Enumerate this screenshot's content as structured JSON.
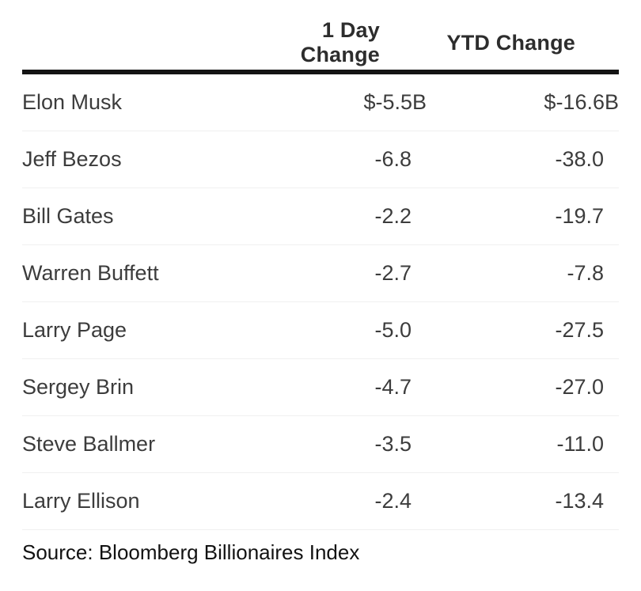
{
  "table": {
    "columns": [
      {
        "label": ""
      },
      {
        "label": "1 Day Change"
      },
      {
        "label": "YTD Change"
      }
    ],
    "rows": [
      {
        "name": "Elon Musk",
        "day": "$-5.5B",
        "ytd": "$-16.6B"
      },
      {
        "name": "Jeff Bezos",
        "day": "-6.8",
        "ytd": "-38.0"
      },
      {
        "name": "Bill Gates",
        "day": "-2.2",
        "ytd": "-19.7"
      },
      {
        "name": "Warren Buffett",
        "day": "-2.7",
        "ytd": "-7.8"
      },
      {
        "name": "Larry Page",
        "day": "-5.0",
        "ytd": "-27.5"
      },
      {
        "name": "Sergey Brin",
        "day": "-4.7",
        "ytd": "-27.0"
      },
      {
        "name": "Steve Ballmer",
        "day": "-3.5",
        "ytd": "-11.0"
      },
      {
        "name": "Larry Ellison",
        "day": "-2.4",
        "ytd": "-13.4"
      }
    ],
    "source": "Source: Bloomberg Billionaires Index"
  },
  "colors": {
    "header_rule": "#141414",
    "row_divider": "#f0f0f0",
    "header_text": "#2d2d2d",
    "body_text": "#3c3c3c",
    "source_text": "#121212",
    "background": "#ffffff"
  },
  "chart_data": {
    "type": "table",
    "title": "",
    "columns": [
      "",
      "1 Day Change",
      "YTD Change"
    ],
    "rows": [
      [
        "Elon Musk",
        "$-5.5B",
        "$-16.6B"
      ],
      [
        "Jeff Bezos",
        "-6.8",
        "-38.0"
      ],
      [
        "Bill Gates",
        "-2.2",
        "-19.7"
      ],
      [
        "Warren Buffett",
        "-2.7",
        "-7.8"
      ],
      [
        "Larry Page",
        "-5.0",
        "-27.5"
      ],
      [
        "Sergey Brin",
        "-4.7",
        "-27.0"
      ],
      [
        "Steve Ballmer",
        "-3.5",
        "-11.0"
      ],
      [
        "Larry Ellison",
        "-2.4",
        "-13.4"
      ]
    ],
    "day_change_values_billions": [
      -5.5,
      -6.8,
      -2.2,
      -2.7,
      -5.0,
      -4.7,
      -3.5,
      -2.4
    ],
    "ytd_change_values_billions": [
      -16.6,
      -38.0,
      -19.7,
      -7.8,
      -27.5,
      -27.0,
      -11.0,
      -13.4
    ],
    "source": "Source: Bloomberg Billionaires Index"
  }
}
